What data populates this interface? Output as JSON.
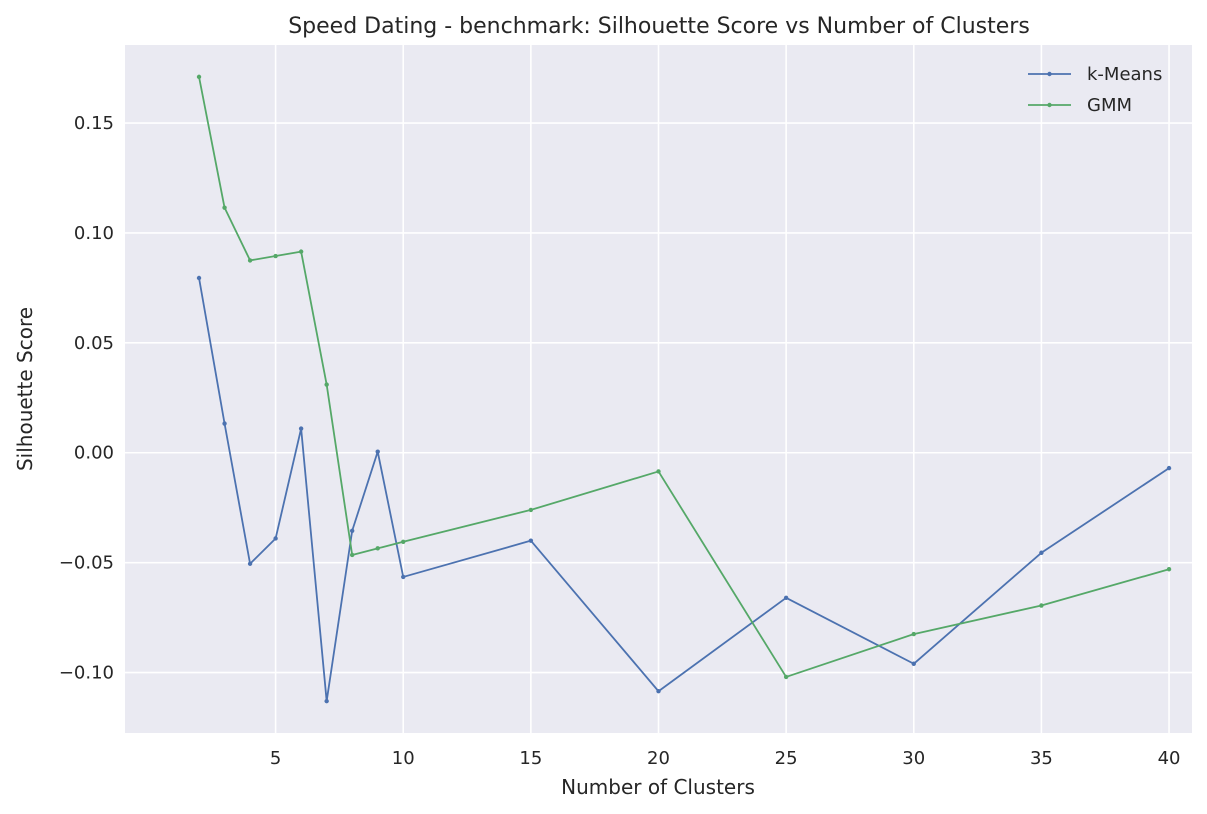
{
  "chart_data": {
    "type": "line",
    "title": "Speed Dating - benchmark: Silhouette Score vs Number of Clusters",
    "xlabel": "Number of Clusters",
    "ylabel": "Silhouette Score",
    "x": [
      2,
      3,
      4,
      5,
      6,
      7,
      8,
      9,
      10,
      15,
      20,
      25,
      30,
      35,
      40
    ],
    "series": [
      {
        "name": "k-Means",
        "color": "#4c72b0",
        "values": [
          0.0795,
          0.0133,
          -0.0505,
          -0.039,
          0.011,
          -0.113,
          -0.0355,
          0.0005,
          -0.0565,
          -0.04,
          -0.1085,
          -0.066,
          -0.096,
          -0.0455,
          -0.007
        ]
      },
      {
        "name": "GMM",
        "color": "#55a868",
        "values": [
          0.171,
          0.1115,
          0.0875,
          0.0895,
          0.0915,
          0.031,
          -0.0465,
          -0.0435,
          -0.0405,
          -0.026,
          -0.0085,
          -0.102,
          -0.0825,
          -0.0695,
          -0.053
        ]
      }
    ],
    "xlim": [
      -0.9,
      40.9
    ],
    "ylim": [
      -0.1275,
      0.1855
    ],
    "xticks": [
      5,
      10,
      15,
      20,
      25,
      30,
      35,
      40
    ],
    "xtick_labels": [
      "5",
      "10",
      "15",
      "20",
      "25",
      "30",
      "35",
      "40"
    ],
    "yticks": [
      -0.1,
      -0.05,
      0.0,
      0.05,
      0.1,
      0.15
    ],
    "ytick_labels": [
      "−0.10",
      "−0.05",
      "0.00",
      "0.05",
      "0.10",
      "0.15"
    ],
    "grid": true,
    "legend_position": "top-right",
    "colors": {
      "plot_background": "#eaeaf2",
      "grid": "#ffffff",
      "text": "#262626"
    }
  }
}
